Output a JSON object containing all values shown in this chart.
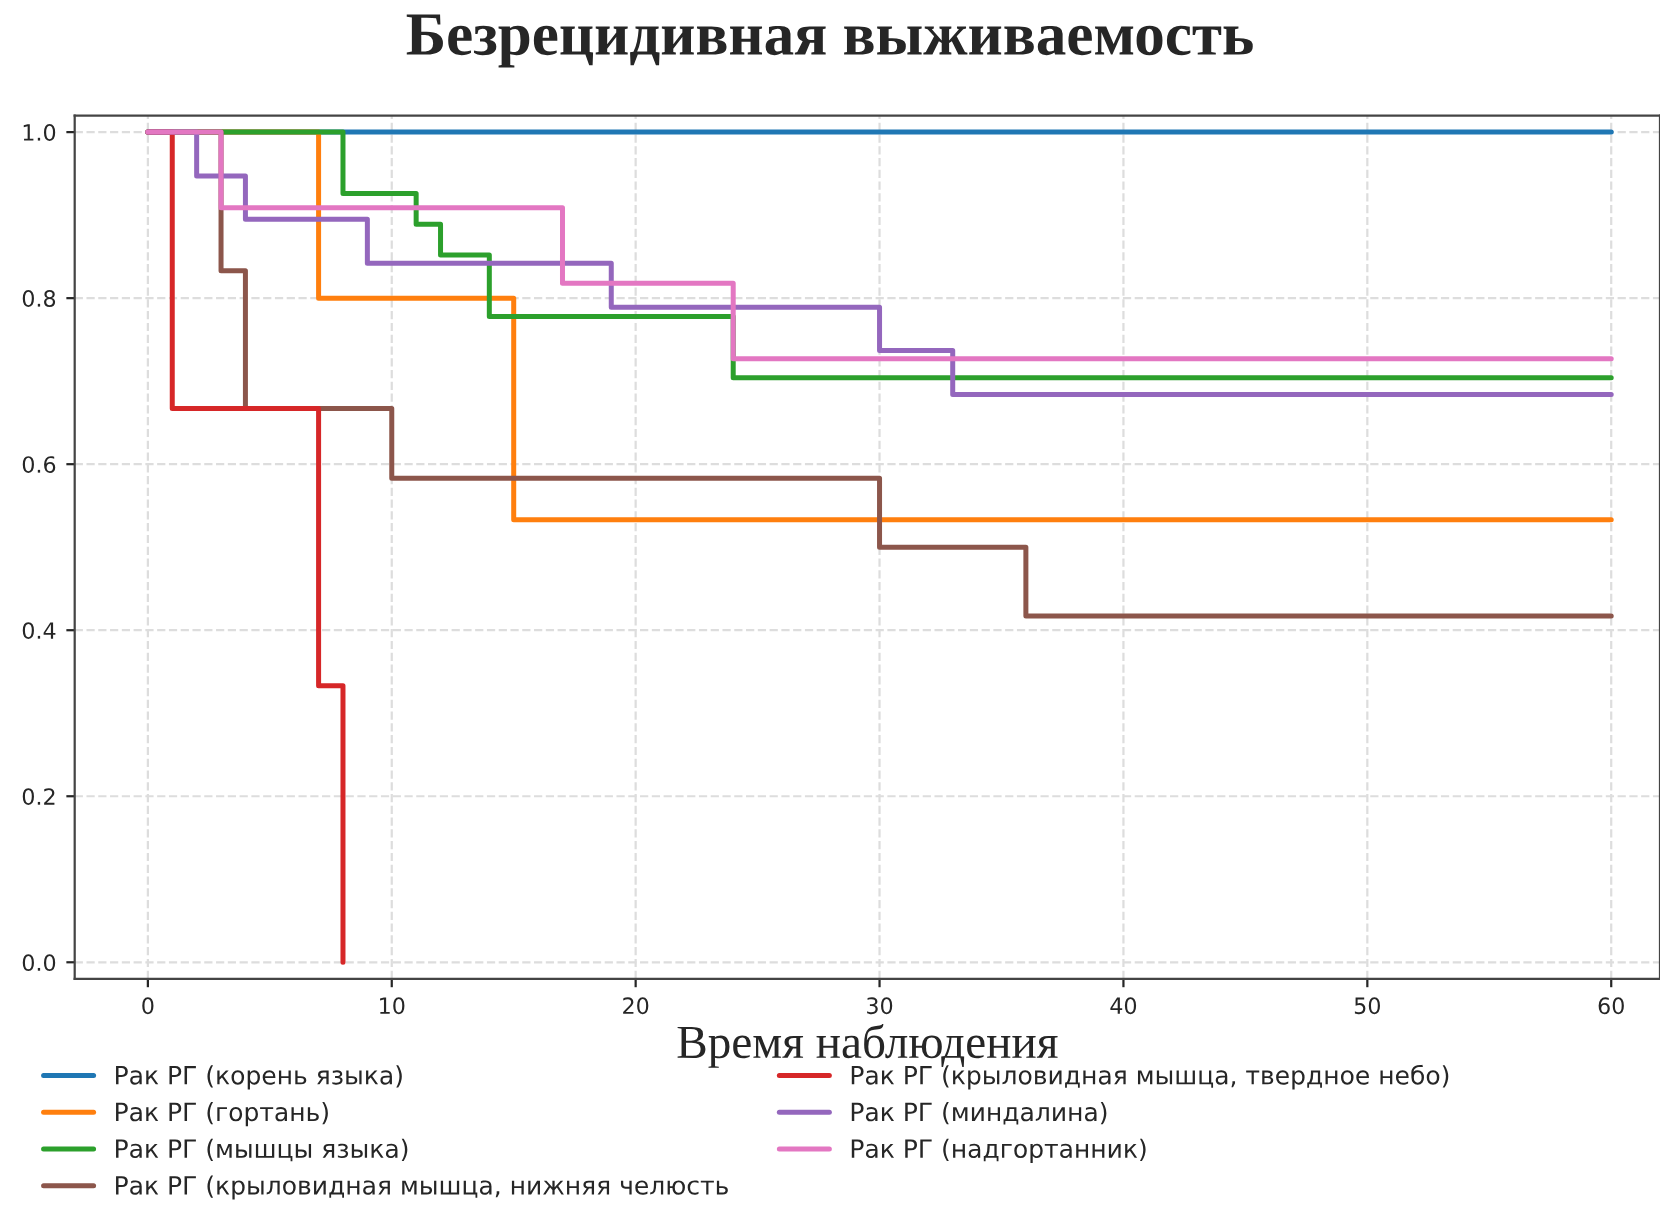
{
  "chart_data": {
    "type": "step",
    "title": "Безрецидивная выживаемость",
    "xlabel": "Время наблюдения",
    "xlim": [
      -3,
      62
    ],
    "xticks": [
      0,
      10,
      20,
      30,
      40,
      50,
      60
    ],
    "ylim": [
      -0.02,
      1.02
    ],
    "yticks": [
      {
        "value": 0,
        "label": "0.0"
      },
      {
        "value": 0.2,
        "label": "0.2"
      },
      {
        "value": 0.4,
        "label": "0.4"
      },
      {
        "value": 0.6,
        "label": "0.6"
      },
      {
        "value": 0.8,
        "label": "0.8"
      },
      {
        "value": 1,
        "label": "1.0"
      }
    ],
    "grid": true,
    "legend": "bottom",
    "series": [
      {
        "name": "Рак РГ (корень языка)",
        "color": "#1f77b4",
        "x": [
          0,
          60
        ],
        "values": [
          1.0,
          1.0
        ]
      },
      {
        "name": "Рак РГ (гортань)",
        "color": "#ff7f0e",
        "x": [
          0,
          7,
          15,
          60
        ],
        "values": [
          1.0,
          0.8,
          0.533,
          0.533
        ]
      },
      {
        "name": "Рак РГ (мышцы языка)",
        "color": "#2ca02c",
        "x": [
          0,
          8,
          11,
          12,
          14,
          24,
          60
        ],
        "values": [
          1.0,
          0.926,
          0.889,
          0.852,
          0.778,
          0.704,
          0.704
        ]
      },
      {
        "name": "Рак РГ (крыловидная мышца, нижняя челюсть",
        "color": "#8c564b",
        "x": [
          0,
          3,
          4,
          10,
          30,
          36,
          60
        ],
        "values": [
          1.0,
          0.833,
          0.667,
          0.583,
          0.5,
          0.417,
          0.417
        ]
      },
      {
        "name": "Рак РГ (крыловидная мышца, твердное небо)",
        "color": "#d62728",
        "x": [
          0,
          1,
          7,
          8
        ],
        "values": [
          1.0,
          0.667,
          0.333,
          0.0
        ]
      },
      {
        "name": "Рак РГ (миндалина)",
        "color": "#9467bd",
        "x": [
          0,
          2,
          4,
          9,
          19,
          30,
          33,
          60
        ],
        "values": [
          1.0,
          0.947,
          0.895,
          0.842,
          0.789,
          0.737,
          0.684,
          0.684
        ]
      },
      {
        "name": "Рак РГ (надгортанник)",
        "color": "#e377c2",
        "x": [
          0,
          3,
          17,
          24,
          60
        ],
        "values": [
          1.0,
          0.909,
          0.818,
          0.727,
          0.727
        ]
      }
    ]
  }
}
